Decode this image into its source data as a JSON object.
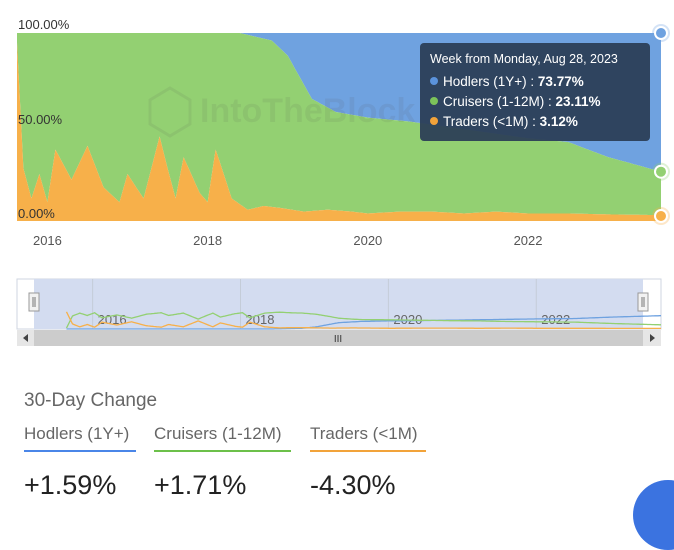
{
  "chart_data": {
    "type": "area",
    "stacked_percent": true,
    "y_ticks": [
      "100.00%",
      "50.00%",
      "0.00%"
    ],
    "x_ticks": [
      "2016",
      "2018",
      "2020",
      "2022"
    ],
    "x_range": [
      2015.62,
      2023.66
    ],
    "ylim": [
      0,
      100
    ],
    "series": [
      {
        "name": "Traders (<1M)",
        "color": "#f7b04a",
        "x": [
          2015.62,
          2015.7,
          2015.8,
          2015.9,
          2016.0,
          2016.1,
          2016.3,
          2016.5,
          2016.7,
          2016.9,
          2017.0,
          2017.2,
          2017.4,
          2017.5,
          2017.6,
          2017.7,
          2017.9,
          2018.0,
          2018.1,
          2018.3,
          2018.5,
          2018.7,
          2018.9,
          2019.2,
          2019.5,
          2019.8,
          2020.0,
          2020.4,
          2020.8,
          2021.2,
          2021.6,
          2022.0,
          2022.5,
          2023.0,
          2023.66
        ],
        "values": [
          95,
          28,
          12,
          25,
          10,
          38,
          22,
          40,
          18,
          10,
          25,
          12,
          45,
          28,
          12,
          34,
          15,
          10,
          38,
          12,
          6,
          8,
          7,
          5,
          6,
          5,
          4,
          5,
          5,
          4,
          5,
          4,
          4,
          3.5,
          3.12
        ]
      },
      {
        "name": "Cruisers (1-12M)",
        "color": "#93d072",
        "x": [
          2015.62,
          2016.0,
          2016.5,
          2017.0,
          2017.5,
          2018.0,
          2018.4,
          2018.8,
          2019.0,
          2019.3,
          2019.6,
          2020.0,
          2020.5,
          2021.0,
          2021.5,
          2022.0,
          2022.5,
          2023.0,
          2023.66
        ],
        "values": [
          5,
          72,
          60,
          88,
          55,
          90,
          85,
          80,
          76,
          55,
          52,
          50,
          48,
          45,
          42,
          40,
          37,
          30,
          23.11
        ]
      },
      {
        "name": "Hodlers (1Y+)",
        "color": "#6fa2e0",
        "x": [
          2015.62,
          2016.0,
          2016.5,
          2017.0,
          2017.5,
          2018.0,
          2018.4,
          2018.8,
          2019.0,
          2019.3,
          2019.6,
          2020.0,
          2020.5,
          2021.0,
          2021.5,
          2022.0,
          2022.5,
          2023.0,
          2023.66
        ],
        "values": [
          0,
          0,
          0,
          0,
          0,
          0,
          0,
          4,
          12,
          35,
          42,
          45,
          47,
          50,
          53,
          56,
          58,
          66,
          73.77
        ]
      }
    ]
  },
  "watermark": "IntoTheBlock",
  "tooltip": {
    "title": "Week from Monday, Aug 28, 2023",
    "rows": [
      {
        "label": "Hodlers (1Y+) : ",
        "value": "73.77%",
        "color": "#5b93dc"
      },
      {
        "label": "Cruisers (1-12M) : ",
        "value": "23.11%",
        "color": "#7cc35a"
      },
      {
        "label": "Traders (<1M) : ",
        "value": "3.12%",
        "color": "#f2a33a"
      }
    ]
  },
  "navigator": {
    "x_ticks": [
      "2016",
      "2018",
      "2020",
      "2022"
    ],
    "scroll_grip": "III"
  },
  "change": {
    "title": "30-Day Change",
    "items": [
      {
        "label": "Hodlers (1Y+)",
        "value": "+1.59%",
        "color": "#4a86e8"
      },
      {
        "label": "Cruisers (1-12M)",
        "value": "+1.71%",
        "color": "#6cc04a"
      },
      {
        "label": "Traders (<1M)",
        "value": "-4.30%",
        "color": "#f2a33a"
      }
    ]
  }
}
